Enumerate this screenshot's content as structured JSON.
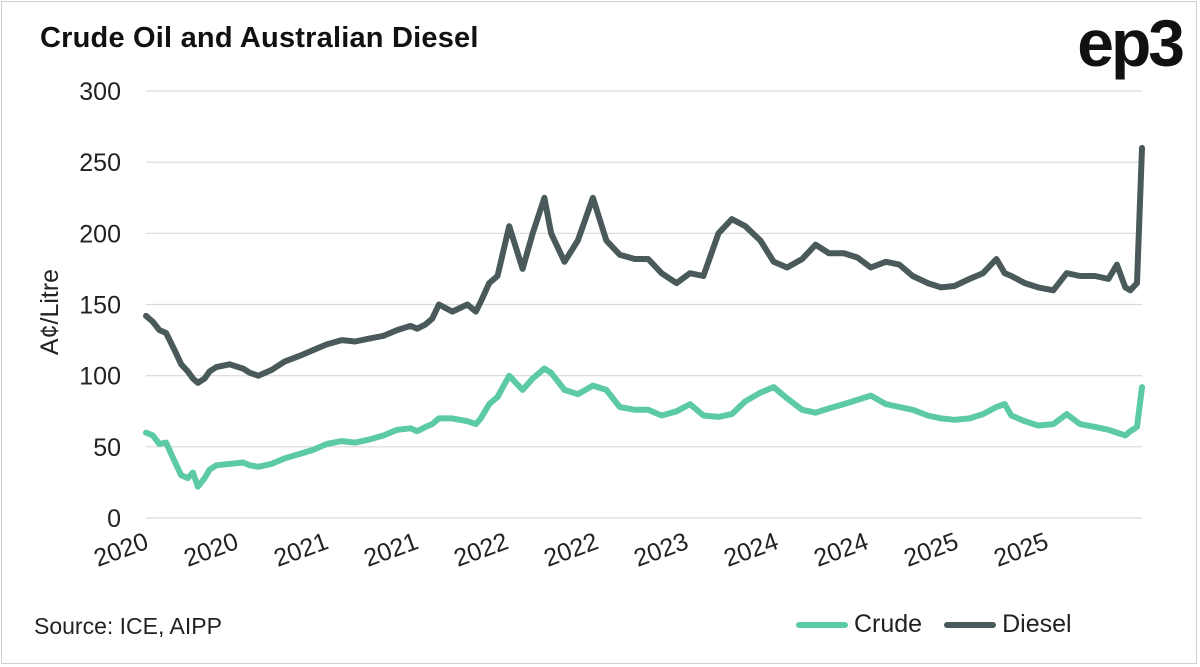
{
  "title": "Crude Oil and Australian Diesel",
  "logo": "ep3",
  "source": "Source: ICE, AIPP",
  "legend": [
    {
      "label": "Crude",
      "color": "#5cc9a7"
    },
    {
      "label": "Diesel",
      "color": "#4a5a5a"
    }
  ],
  "chart_data": {
    "type": "line",
    "title": "Crude Oil and Australian Diesel",
    "xlabel": "",
    "ylabel": "A¢/Litre",
    "ylim": [
      0,
      300
    ],
    "yticks": [
      0,
      50,
      100,
      150,
      200,
      250,
      300
    ],
    "xlim": [
      2020.0,
      2025.95
    ],
    "x_tick_labels": [
      "2020",
      "2020",
      "2021",
      "2021",
      "2022",
      "2022",
      "2023",
      "2024",
      "2024",
      "2025",
      "2025"
    ],
    "grid": true,
    "legend_position": "bottom-right",
    "series": [
      {
        "name": "Crude",
        "color": "#5cc9a7",
        "x": [
          2020.0,
          2020.04,
          2020.08,
          2020.12,
          2020.17,
          2020.21,
          2020.25,
          2020.28,
          2020.31,
          2020.35,
          2020.38,
          2020.42,
          2020.5,
          2020.58,
          2020.62,
          2020.67,
          2020.75,
          2020.83,
          2020.92,
          2021.0,
          2021.08,
          2021.17,
          2021.25,
          2021.33,
          2021.42,
          2021.5,
          2021.58,
          2021.62,
          2021.67,
          2021.71,
          2021.75,
          2021.83,
          2021.92,
          2021.97,
          2022.0,
          2022.05,
          2022.1,
          2022.17,
          2022.25,
          2022.31,
          2022.38,
          2022.42,
          2022.5,
          2022.58,
          2022.67,
          2022.75,
          2022.83,
          2022.92,
          2023.0,
          2023.08,
          2023.17,
          2023.25,
          2023.33,
          2023.42,
          2023.5,
          2023.58,
          2023.67,
          2023.75,
          2023.83,
          2023.92,
          2024.0,
          2024.08,
          2024.17,
          2024.25,
          2024.33,
          2024.42,
          2024.5,
          2024.58,
          2024.67,
          2024.75,
          2024.83,
          2024.92,
          2025.0,
          2025.08,
          2025.13,
          2025.17,
          2025.25,
          2025.33,
          2025.42,
          2025.5,
          2025.58,
          2025.67,
          2025.75,
          2025.8,
          2025.85,
          2025.88,
          2025.92,
          2025.95
        ],
        "values": [
          60,
          58,
          52,
          53,
          40,
          30,
          28,
          32,
          22,
          28,
          34,
          37,
          38,
          39,
          37,
          36,
          38,
          42,
          45,
          48,
          52,
          54,
          53,
          55,
          58,
          62,
          63,
          61,
          64,
          66,
          70,
          70,
          68,
          66,
          70,
          80,
          85,
          100,
          90,
          98,
          105,
          102,
          90,
          87,
          93,
          90,
          78,
          76,
          76,
          72,
          75,
          80,
          72,
          71,
          73,
          82,
          88,
          92,
          84,
          76,
          74,
          77,
          80,
          83,
          86,
          80,
          78,
          76,
          72,
          70,
          69,
          70,
          73,
          78,
          80,
          72,
          68,
          65,
          66,
          73,
          66,
          64,
          62,
          60,
          58,
          61,
          64,
          92
        ]
      },
      {
        "name": "Diesel",
        "color": "#4a5a5a",
        "x": [
          2020.0,
          2020.04,
          2020.08,
          2020.12,
          2020.17,
          2020.21,
          2020.25,
          2020.28,
          2020.31,
          2020.35,
          2020.38,
          2020.42,
          2020.5,
          2020.58,
          2020.62,
          2020.67,
          2020.75,
          2020.83,
          2020.92,
          2021.0,
          2021.08,
          2021.17,
          2021.25,
          2021.33,
          2021.42,
          2021.5,
          2021.58,
          2021.62,
          2021.67,
          2021.71,
          2021.75,
          2021.83,
          2021.92,
          2021.97,
          2022.0,
          2022.05,
          2022.1,
          2022.17,
          2022.25,
          2022.31,
          2022.38,
          2022.42,
          2022.5,
          2022.58,
          2022.67,
          2022.75,
          2022.83,
          2022.92,
          2023.0,
          2023.08,
          2023.17,
          2023.25,
          2023.33,
          2023.42,
          2023.5,
          2023.58,
          2023.67,
          2023.75,
          2023.83,
          2023.92,
          2024.0,
          2024.08,
          2024.17,
          2024.25,
          2024.33,
          2024.42,
          2024.5,
          2024.58,
          2024.67,
          2024.75,
          2024.83,
          2024.92,
          2025.0,
          2025.08,
          2025.13,
          2025.17,
          2025.25,
          2025.33,
          2025.42,
          2025.5,
          2025.58,
          2025.67,
          2025.75,
          2025.8,
          2025.85,
          2025.88,
          2025.92,
          2025.95
        ],
        "values": [
          142,
          138,
          132,
          130,
          118,
          108,
          103,
          98,
          95,
          98,
          103,
          106,
          108,
          105,
          102,
          100,
          104,
          110,
          114,
          118,
          122,
          125,
          124,
          126,
          128,
          132,
          135,
          133,
          136,
          140,
          150,
          145,
          150,
          145,
          152,
          165,
          170,
          205,
          175,
          200,
          225,
          200,
          180,
          195,
          225,
          195,
          185,
          182,
          182,
          172,
          165,
          172,
          170,
          200,
          210,
          205,
          195,
          180,
          176,
          182,
          192,
          186,
          186,
          183,
          176,
          180,
          178,
          170,
          165,
          162,
          163,
          168,
          172,
          182,
          172,
          170,
          165,
          162,
          160,
          172,
          170,
          170,
          168,
          178,
          162,
          160,
          165,
          260
        ]
      }
    ]
  }
}
